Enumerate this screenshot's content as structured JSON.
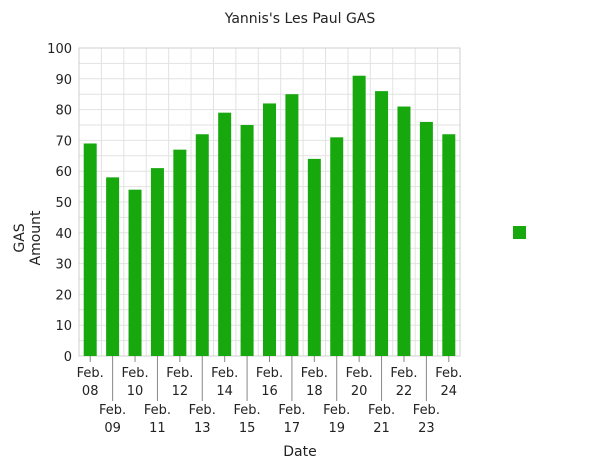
{
  "chart_data": {
    "type": "bar",
    "title": "Yannis's Les Paul GAS",
    "xlabel": "Date",
    "ylabel_lines": [
      "GAS",
      "Amount"
    ],
    "ylim": [
      0,
      100
    ],
    "yticks": [
      0,
      10,
      20,
      30,
      40,
      50,
      60,
      70,
      80,
      90,
      100
    ],
    "grid": true,
    "legend": {
      "placement": "right",
      "entries": [
        ""
      ]
    },
    "color": "#17a80d",
    "categories": [
      [
        "Feb.",
        "08"
      ],
      [
        "Feb.",
        "09"
      ],
      [
        "Feb.",
        "10"
      ],
      [
        "Feb.",
        "11"
      ],
      [
        "Feb.",
        "12"
      ],
      [
        "Feb.",
        "13"
      ],
      [
        "Feb.",
        "14"
      ],
      [
        "Feb.",
        "15"
      ],
      [
        "Feb.",
        "16"
      ],
      [
        "Feb.",
        "17"
      ],
      [
        "Feb.",
        "18"
      ],
      [
        "Feb.",
        "19"
      ],
      [
        "Feb.",
        "20"
      ],
      [
        "Feb.",
        "21"
      ],
      [
        "Feb.",
        "22"
      ],
      [
        "Feb.",
        "23"
      ],
      [
        "Feb.",
        "24"
      ]
    ],
    "values": [
      69,
      58,
      54,
      61,
      67,
      72,
      79,
      75,
      82,
      85,
      64,
      71,
      91,
      86,
      81,
      76,
      72
    ]
  }
}
